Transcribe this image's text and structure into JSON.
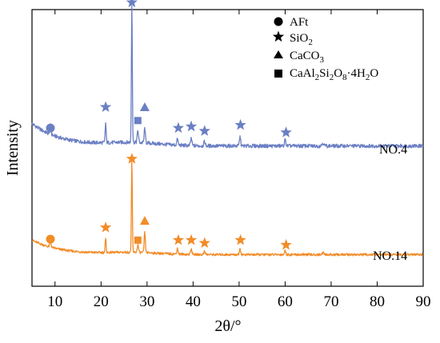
{
  "chart_data": {
    "type": "line",
    "xlabel": "2θ/°",
    "ylabel": "Intensity",
    "xlim": [
      5,
      90
    ],
    "xticks": [
      10,
      20,
      30,
      40,
      50,
      60,
      70,
      80,
      90
    ],
    "ticks_on_top_and_right": true,
    "y_tick_labels": false,
    "grid": false,
    "legend": {
      "placement": "top-right",
      "entries": [
        {
          "marker": "circle",
          "label": "AFt"
        },
        {
          "marker": "star",
          "label": "SiO",
          "sub": "2"
        },
        {
          "marker": "triangle",
          "label": "CaCO",
          "sub": "3"
        },
        {
          "marker": "square",
          "label": "CaAl",
          "sub": "2",
          "label2": "Si",
          "sub2": "2",
          "label3": "O",
          "sub3": "8",
          "label4": "·4H",
          "sub4": "2",
          "label5": "O"
        }
      ]
    },
    "series": [
      {
        "name": "NO.4",
        "color": "#6b7fc4",
        "baseline_start": 0.27,
        "baseline_end": 0.12,
        "peaks": [
          {
            "x": 9.0,
            "h": 0.06,
            "w": 0.2
          },
          {
            "x": 21.0,
            "h": 0.13,
            "w": 0.15
          },
          {
            "x": 26.7,
            "h": 0.94,
            "w": 0.14
          },
          {
            "x": 28.0,
            "h": 0.08,
            "w": 0.2
          },
          {
            "x": 29.5,
            "h": 0.1,
            "w": 0.18
          },
          {
            "x": 36.6,
            "h": 0.04,
            "w": 0.2
          },
          {
            "x": 39.6,
            "h": 0.05,
            "w": 0.2
          },
          {
            "x": 42.5,
            "h": 0.03,
            "w": 0.2
          },
          {
            "x": 50.2,
            "h": 0.06,
            "w": 0.2
          },
          {
            "x": 60.0,
            "h": 0.04,
            "w": 0.22
          },
          {
            "x": 68.2,
            "h": 0.02,
            "w": 0.3
          }
        ],
        "markers": [
          {
            "x": 9.0,
            "marker": "circle",
            "y": 0.24
          },
          {
            "x": 21.0,
            "marker": "star",
            "y": 0.38
          },
          {
            "x": 26.7,
            "marker": "star",
            "y": 1.08
          },
          {
            "x": 28.0,
            "marker": "square",
            "y": 0.29
          },
          {
            "x": 29.5,
            "marker": "triangle",
            "y": 0.38
          },
          {
            "x": 36.8,
            "marker": "star",
            "y": 0.24
          },
          {
            "x": 39.6,
            "marker": "star",
            "y": 0.25
          },
          {
            "x": 42.5,
            "marker": "star",
            "y": 0.22
          },
          {
            "x": 50.3,
            "marker": "star",
            "y": 0.26
          },
          {
            "x": 60.2,
            "marker": "star",
            "y": 0.21
          }
        ]
      },
      {
        "name": "NO.14",
        "color": "#f28c28",
        "baseline_start": 0.27,
        "baseline_end": 0.12,
        "peaks": [
          {
            "x": 9.0,
            "h": 0.06,
            "w": 0.2
          },
          {
            "x": 21.0,
            "h": 0.14,
            "w": 0.15
          },
          {
            "x": 26.7,
            "h": 0.94,
            "w": 0.14
          },
          {
            "x": 28.0,
            "h": 0.08,
            "w": 0.2
          },
          {
            "x": 29.5,
            "h": 0.21,
            "w": 0.18
          },
          {
            "x": 36.6,
            "h": 0.06,
            "w": 0.2
          },
          {
            "x": 39.6,
            "h": 0.06,
            "w": 0.2
          },
          {
            "x": 42.5,
            "h": 0.04,
            "w": 0.2
          },
          {
            "x": 50.2,
            "h": 0.06,
            "w": 0.2
          },
          {
            "x": 60.0,
            "h": 0.04,
            "w": 0.22
          },
          {
            "x": 68.2,
            "h": 0.02,
            "w": 0.3
          }
        ],
        "markers": [
          {
            "x": 9.0,
            "marker": "circle",
            "y": 0.28
          },
          {
            "x": 21.0,
            "marker": "star",
            "y": 0.4
          },
          {
            "x": 26.7,
            "marker": "star",
            "y": 1.11
          },
          {
            "x": 28.0,
            "marker": "square",
            "y": 0.27
          },
          {
            "x": 29.5,
            "marker": "triangle",
            "y": 0.47
          },
          {
            "x": 36.8,
            "marker": "star",
            "y": 0.27
          },
          {
            "x": 39.6,
            "marker": "star",
            "y": 0.27
          },
          {
            "x": 42.5,
            "marker": "star",
            "y": 0.24
          },
          {
            "x": 50.3,
            "marker": "star",
            "y": 0.27
          },
          {
            "x": 60.2,
            "marker": "star",
            "y": 0.22
          }
        ]
      }
    ]
  }
}
